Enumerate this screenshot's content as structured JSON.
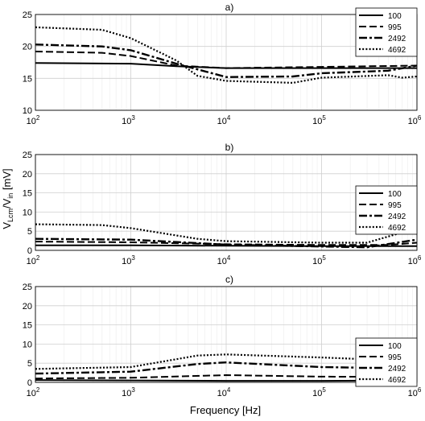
{
  "figure": {
    "xlabel": "Frequency [Hz]",
    "ylabel_main": "V",
    "ylabel_sub1": "Lcm",
    "ylabel_mid": "/V",
    "ylabel_sub2": "in",
    "ylabel_unit": " [mV]"
  },
  "chart_data": [
    {
      "type": "line",
      "title": "a)",
      "xscale": "log",
      "xlim": [
        100,
        1000000
      ],
      "ylim": [
        10,
        25
      ],
      "yticks": [
        10,
        15,
        20,
        25
      ],
      "xticks": [
        100,
        1000,
        10000,
        100000,
        1000000
      ],
      "xtick_base": "10",
      "xtick_exponents": [
        "2",
        "3",
        "4",
        "5",
        "6"
      ],
      "grid": true,
      "legend": "top-right",
      "series": [
        {
          "name": "100",
          "style": "solid",
          "x": [
            100,
            1000,
            3000,
            10000,
            100000,
            1000000
          ],
          "y": [
            17.4,
            17.3,
            16.9,
            16.6,
            16.6,
            16.6
          ]
        },
        {
          "name": "995",
          "style": "dashed",
          "x": [
            100,
            500,
            1000,
            3000,
            10000,
            100000,
            1000000
          ],
          "y": [
            19.2,
            19.0,
            18.5,
            17.0,
            16.6,
            16.8,
            17.0
          ]
        },
        {
          "name": "2492",
          "style": "dashdot",
          "x": [
            100,
            500,
            1000,
            3000,
            10000,
            50000,
            100000,
            500000,
            1000000
          ],
          "y": [
            20.3,
            20.0,
            19.4,
            17.3,
            15.2,
            15.3,
            15.8,
            16.2,
            17.0
          ]
        },
        {
          "name": "4692",
          "style": "dotted",
          "x": [
            100,
            500,
            1000,
            3000,
            5000,
            10000,
            50000,
            100000,
            500000,
            700000,
            1000000
          ],
          "y": [
            23.0,
            22.6,
            21.3,
            17.8,
            15.4,
            14.6,
            14.3,
            15.1,
            15.5,
            15.1,
            15.3
          ]
        }
      ]
    },
    {
      "type": "line",
      "title": "b)",
      "xscale": "log",
      "xlim": [
        100,
        1000000
      ],
      "ylim": [
        0,
        25
      ],
      "yticks": [
        0,
        5,
        10,
        15,
        20,
        25
      ],
      "xticks": [
        100,
        1000,
        10000,
        100000,
        1000000
      ],
      "xtick_base": "10",
      "xtick_exponents": [
        "2",
        "3",
        "4",
        "5",
        "6"
      ],
      "grid": true,
      "legend": "right",
      "series": [
        {
          "name": "100",
          "style": "solid",
          "x": [
            100,
            1000,
            10000,
            100000,
            1000000
          ],
          "y": [
            1.3,
            1.3,
            1.2,
            1.1,
            1.1
          ]
        },
        {
          "name": "995",
          "style": "dashed",
          "x": [
            100,
            1000,
            10000,
            100000,
            500000,
            1000000
          ],
          "y": [
            2.3,
            2.1,
            1.6,
            1.4,
            1.4,
            2.0
          ]
        },
        {
          "name": "2492",
          "style": "dashdot",
          "x": [
            100,
            1000,
            10000,
            100000,
            300000,
            1000000
          ],
          "y": [
            3.0,
            2.8,
            1.5,
            1.0,
            0.8,
            2.8
          ]
        },
        {
          "name": "4692",
          "style": "dotted",
          "x": [
            100,
            500,
            1000,
            5000,
            10000,
            100000,
            300000,
            1000000
          ],
          "y": [
            6.8,
            6.6,
            5.8,
            3.0,
            2.4,
            2.0,
            2.0,
            5.8
          ]
        }
      ]
    },
    {
      "type": "line",
      "title": "c)",
      "xscale": "log",
      "xlim": [
        100,
        1000000
      ],
      "ylim": [
        0,
        25
      ],
      "yticks": [
        0,
        5,
        10,
        15,
        20,
        25
      ],
      "xticks": [
        100,
        1000,
        10000,
        100000,
        1000000
      ],
      "xtick_base": "10",
      "xtick_exponents": [
        "2",
        "3",
        "4",
        "5",
        "6"
      ],
      "grid": true,
      "legend": "right",
      "series": [
        {
          "name": "100",
          "style": "solid",
          "x": [
            100,
            1000,
            10000,
            100000,
            1000000
          ],
          "y": [
            0.6,
            0.5,
            0.4,
            0.4,
            0.5
          ]
        },
        {
          "name": "995",
          "style": "dashed",
          "x": [
            100,
            1000,
            10000,
            100000,
            1000000
          ],
          "y": [
            1.0,
            1.2,
            1.9,
            1.5,
            1.4
          ]
        },
        {
          "name": "2492",
          "style": "dashdot",
          "x": [
            100,
            1000,
            5000,
            10000,
            100000,
            1000000
          ],
          "y": [
            2.3,
            2.8,
            4.8,
            5.2,
            4.0,
            3.6
          ]
        },
        {
          "name": "4692",
          "style": "dotted",
          "x": [
            100,
            1000,
            5000,
            10000,
            100000,
            500000,
            1000000
          ],
          "y": [
            3.5,
            4.0,
            7.0,
            7.3,
            6.5,
            5.8,
            6.0
          ]
        }
      ]
    }
  ]
}
